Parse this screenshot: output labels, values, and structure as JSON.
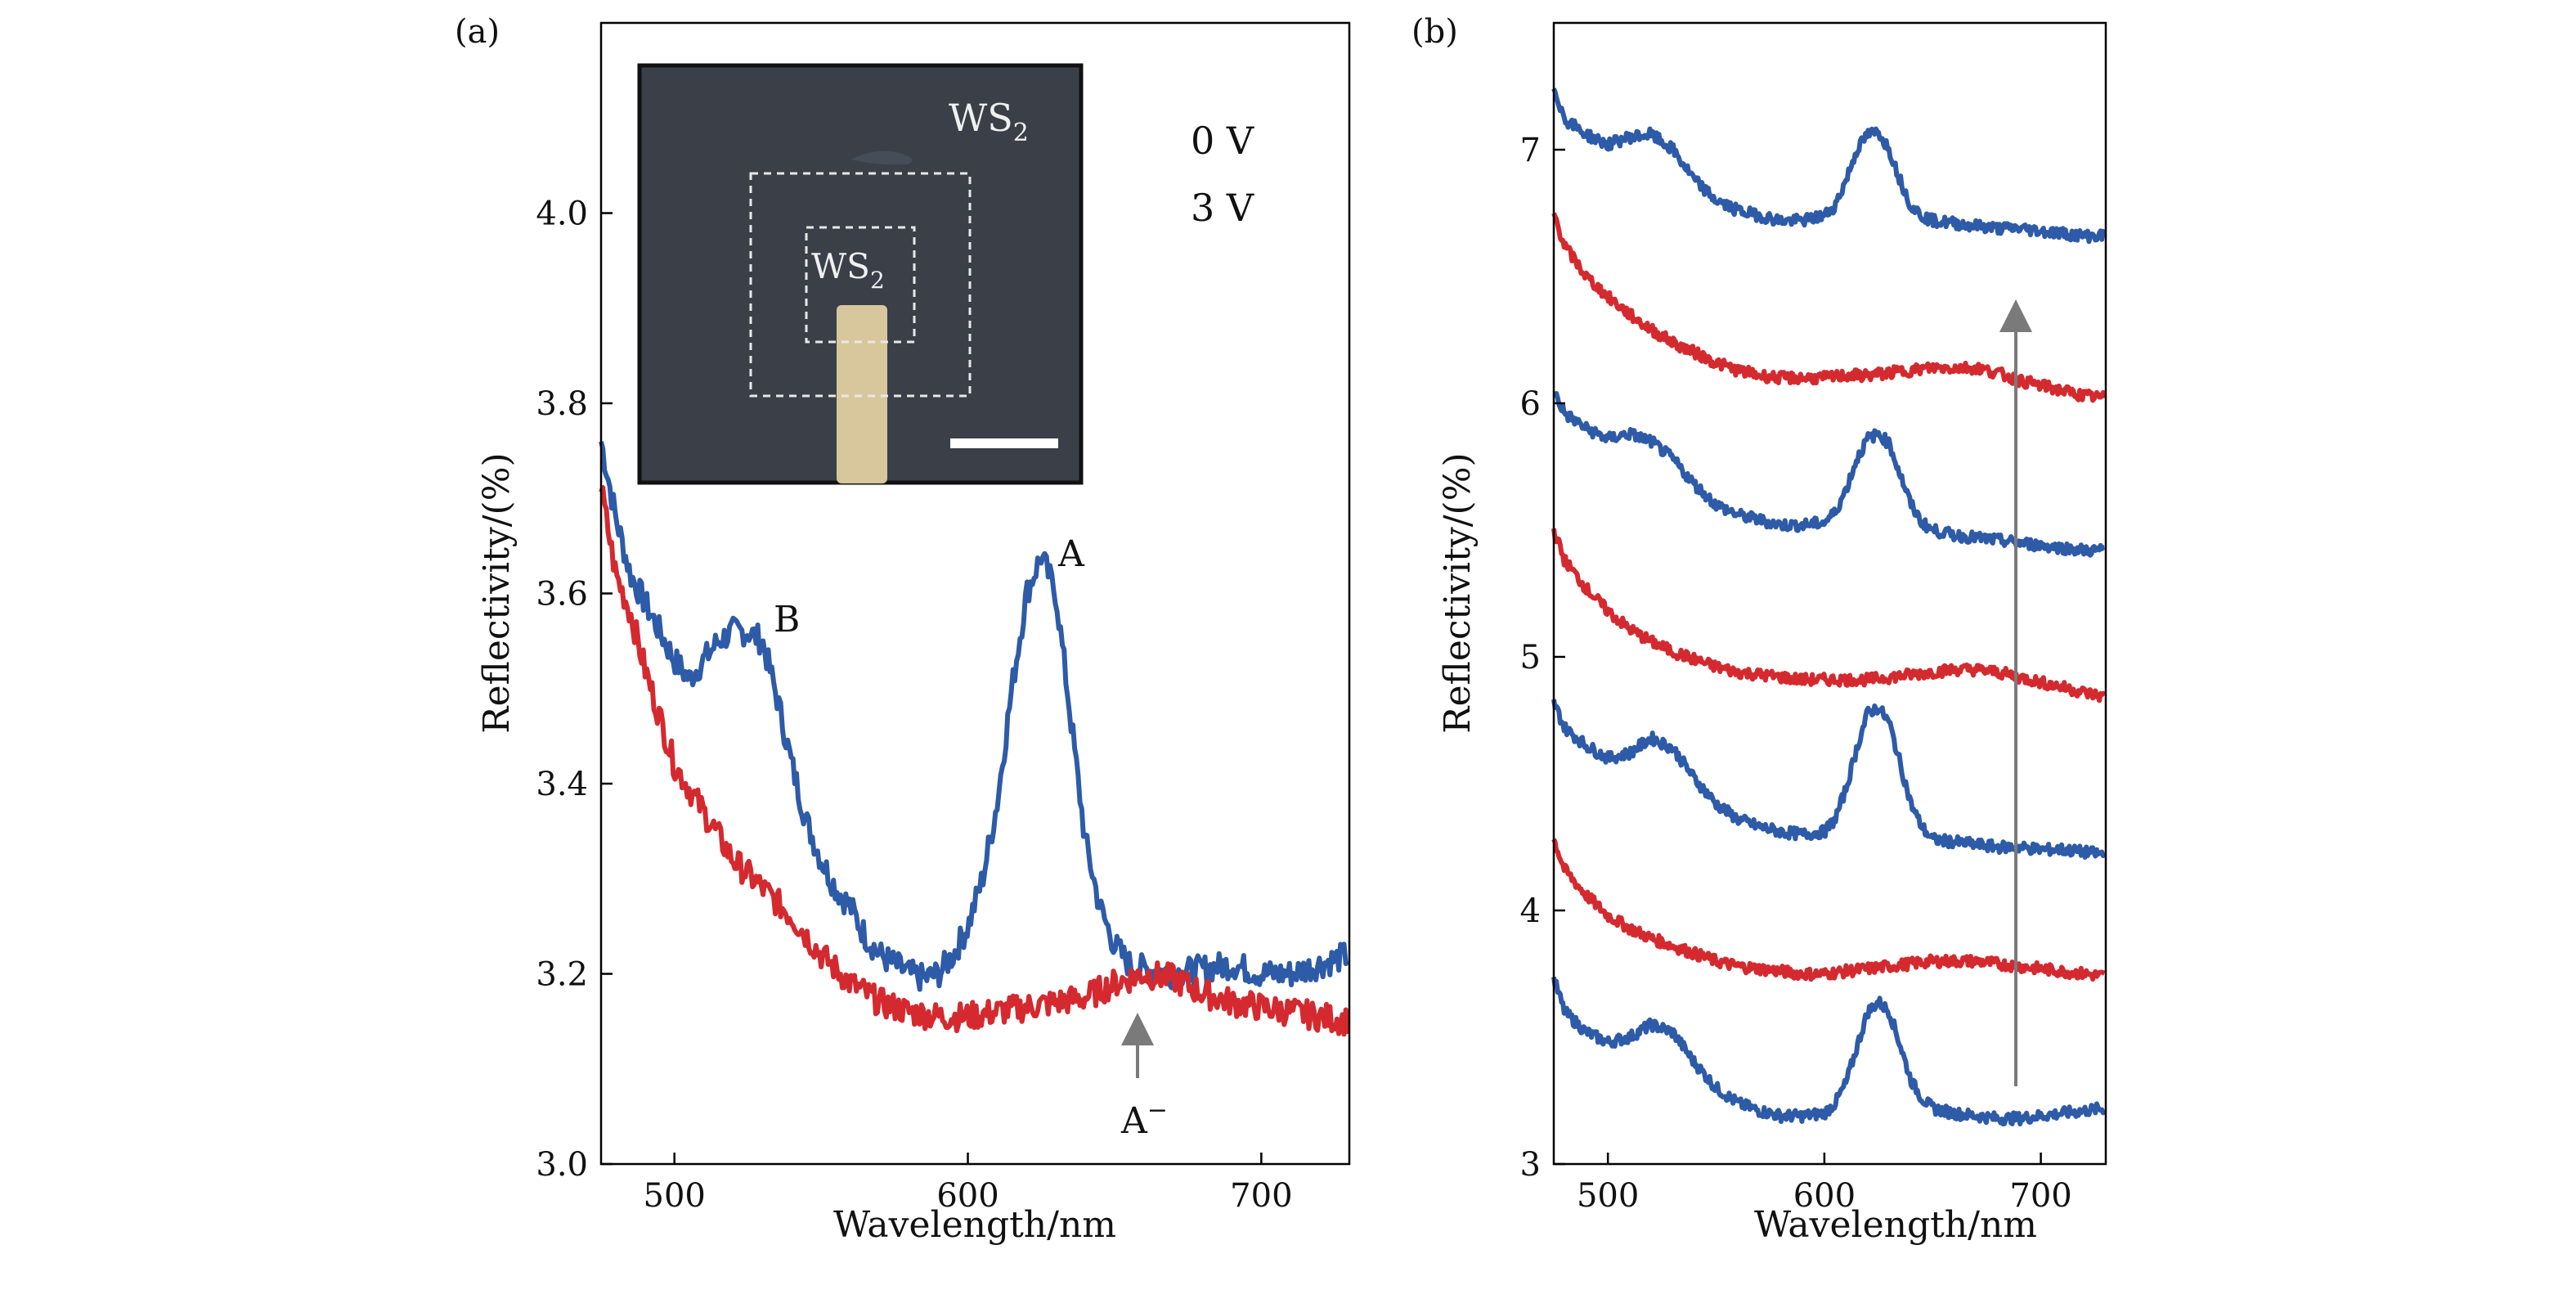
{
  "colors": {
    "blue": "#2e5ba8",
    "red": "#d42a2f",
    "axis": "#000000",
    "arrow": "#7a7a7a",
    "inset_bg": "#3a3f48",
    "electrode": "#d8c79c",
    "dashed": "#e8e8e8"
  },
  "chart_data": [
    {
      "type": "line",
      "panel_label": "(a)",
      "xlabel": "Wavelength/nm",
      "ylabel": "Reflectivity/(%)",
      "xlim": [
        475,
        730
      ],
      "ylim": [
        3.0,
        4.2
      ],
      "xticks": [
        "500",
        "600",
        "700"
      ],
      "yticks": [
        "3.0",
        "3.2",
        "3.4",
        "3.6",
        "3.8",
        "4.0"
      ],
      "legend": [
        {
          "text": "0 V",
          "color": "blue"
        },
        {
          "text": "3 V",
          "color": "red"
        }
      ],
      "legend_position": "top-right",
      "annotations": {
        "A": "A",
        "B": "B",
        "A_minus": "A",
        "A_minus_sup": "−"
      },
      "inset": {
        "outer_label": "WS",
        "outer_sub": "2",
        "inner_label": "WS",
        "inner_sub": "2",
        "has_scale_bar": true
      },
      "series": [
        {
          "name": "0 V",
          "color": "blue",
          "x": [
            475,
            480,
            485,
            490,
            495,
            500,
            505,
            510,
            515,
            520,
            525,
            530,
            535,
            540,
            545,
            550,
            555,
            560,
            565,
            570,
            575,
            580,
            585,
            590,
            595,
            600,
            605,
            610,
            615,
            620,
            625,
            630,
            635,
            640,
            645,
            650,
            655,
            660,
            670,
            680,
            690,
            700,
            710,
            720,
            730
          ],
          "y": [
            3.76,
            3.68,
            3.62,
            3.59,
            3.56,
            3.53,
            3.51,
            3.53,
            3.55,
            3.56,
            3.56,
            3.55,
            3.49,
            3.42,
            3.36,
            3.32,
            3.29,
            3.27,
            3.24,
            3.22,
            3.21,
            3.2,
            3.195,
            3.2,
            3.22,
            3.25,
            3.3,
            3.38,
            3.5,
            3.6,
            3.64,
            3.6,
            3.47,
            3.34,
            3.27,
            3.23,
            3.21,
            3.205,
            3.2,
            3.205,
            3.21,
            3.2,
            3.2,
            3.21,
            3.22
          ]
        },
        {
          "name": "3 V",
          "color": "red",
          "x": [
            475,
            480,
            485,
            490,
            495,
            500,
            510,
            520,
            530,
            540,
            550,
            560,
            570,
            580,
            590,
            600,
            610,
            620,
            630,
            640,
            650,
            660,
            670,
            680,
            690,
            700,
            710,
            720,
            730
          ],
          "y": [
            3.71,
            3.62,
            3.58,
            3.52,
            3.47,
            3.42,
            3.37,
            3.32,
            3.29,
            3.26,
            3.22,
            3.19,
            3.17,
            3.16,
            3.155,
            3.155,
            3.16,
            3.165,
            3.17,
            3.175,
            3.19,
            3.2,
            3.195,
            3.18,
            3.17,
            3.165,
            3.16,
            3.155,
            3.15
          ]
        }
      ]
    },
    {
      "type": "line",
      "panel_label": "(b)",
      "xlabel": "Wavelength/nm",
      "ylabel": "Reflectivity/(%)",
      "xlim": [
        475,
        730
      ],
      "ylim": [
        3.0,
        7.5
      ],
      "xticks": [
        "500",
        "600",
        "700"
      ],
      "yticks": [
        "3",
        "4",
        "5",
        "6",
        "7"
      ],
      "annotations": {
        "arrow_direction": "up"
      },
      "series": [
        {
          "color": "blue",
          "x": [
            475,
            480,
            490,
            500,
            510,
            520,
            530,
            540,
            550,
            560,
            570,
            580,
            590,
            600,
            605,
            610,
            615,
            620,
            625,
            630,
            635,
            640,
            645,
            650,
            660,
            670,
            680,
            690,
            700,
            710,
            720,
            730
          ],
          "y": [
            3.73,
            3.6,
            3.52,
            3.48,
            3.5,
            3.55,
            3.52,
            3.4,
            3.3,
            3.24,
            3.21,
            3.19,
            3.19,
            3.2,
            3.24,
            3.32,
            3.46,
            3.6,
            3.64,
            3.6,
            3.47,
            3.33,
            3.26,
            3.22,
            3.2,
            3.19,
            3.18,
            3.18,
            3.19,
            3.2,
            3.21,
            3.22
          ]
        },
        {
          "color": "red",
          "x": [
            475,
            480,
            490,
            500,
            510,
            520,
            530,
            540,
            550,
            560,
            570,
            580,
            590,
            600,
            610,
            620,
            630,
            640,
            650,
            660,
            670,
            680,
            690,
            700,
            710,
            720,
            730
          ],
          "y": [
            4.28,
            4.16,
            4.06,
            3.98,
            3.93,
            3.89,
            3.86,
            3.83,
            3.8,
            3.78,
            3.77,
            3.76,
            3.75,
            3.75,
            3.76,
            3.77,
            3.78,
            3.79,
            3.8,
            3.8,
            3.8,
            3.79,
            3.78,
            3.77,
            3.76,
            3.75,
            3.74
          ]
        },
        {
          "color": "blue",
          "x": [
            475,
            480,
            490,
            500,
            510,
            520,
            530,
            540,
            550,
            560,
            570,
            580,
            590,
            600,
            605,
            610,
            615,
            620,
            625,
            630,
            635,
            640,
            645,
            650,
            660,
            670,
            680,
            690,
            700,
            710,
            720,
            730
          ],
          "y": [
            4.82,
            4.72,
            4.65,
            4.6,
            4.62,
            4.68,
            4.64,
            4.52,
            4.42,
            4.36,
            4.33,
            4.31,
            4.3,
            4.31,
            4.36,
            4.48,
            4.64,
            4.78,
            4.8,
            4.74,
            4.58,
            4.42,
            4.33,
            4.28,
            4.27,
            4.26,
            4.25,
            4.25,
            4.24,
            4.24,
            4.23,
            4.22
          ]
        },
        {
          "color": "red",
          "x": [
            475,
            480,
            490,
            500,
            510,
            520,
            530,
            540,
            550,
            560,
            570,
            580,
            590,
            600,
            610,
            620,
            630,
            640,
            650,
            660,
            670,
            680,
            690,
            700,
            710,
            720,
            730
          ],
          "y": [
            5.5,
            5.38,
            5.27,
            5.18,
            5.11,
            5.06,
            5.02,
            4.99,
            4.96,
            4.94,
            4.93,
            4.92,
            4.91,
            4.91,
            4.91,
            4.91,
            4.92,
            4.93,
            4.94,
            4.95,
            4.95,
            4.94,
            4.92,
            4.9,
            4.88,
            4.86,
            4.84
          ]
        },
        {
          "color": "blue",
          "x": [
            475,
            480,
            490,
            500,
            510,
            520,
            530,
            540,
            550,
            560,
            570,
            580,
            590,
            600,
            605,
            610,
            615,
            620,
            625,
            630,
            635,
            640,
            645,
            650,
            660,
            670,
            680,
            690,
            700,
            710,
            720,
            730
          ],
          "y": [
            6.05,
            5.96,
            5.9,
            5.86,
            5.88,
            5.85,
            5.78,
            5.68,
            5.6,
            5.56,
            5.54,
            5.52,
            5.52,
            5.53,
            5.57,
            5.66,
            5.78,
            5.86,
            5.88,
            5.84,
            5.72,
            5.6,
            5.53,
            5.5,
            5.48,
            5.47,
            5.46,
            5.45,
            5.44,
            5.43,
            5.42,
            5.42
          ]
        },
        {
          "color": "red",
          "x": [
            475,
            480,
            490,
            500,
            510,
            520,
            530,
            540,
            550,
            560,
            570,
            580,
            590,
            600,
            610,
            620,
            630,
            640,
            650,
            660,
            670,
            680,
            690,
            700,
            710,
            720,
            730
          ],
          "y": [
            6.75,
            6.62,
            6.5,
            6.42,
            6.35,
            6.29,
            6.24,
            6.2,
            6.16,
            6.13,
            6.11,
            6.1,
            6.1,
            6.1,
            6.11,
            6.11,
            6.12,
            6.13,
            6.14,
            6.14,
            6.14,
            6.12,
            6.09,
            6.07,
            6.05,
            6.03,
            6.02
          ]
        },
        {
          "color": "blue",
          "x": [
            475,
            480,
            490,
            500,
            510,
            520,
            530,
            540,
            550,
            560,
            570,
            580,
            590,
            600,
            605,
            610,
            615,
            620,
            625,
            630,
            635,
            640,
            645,
            650,
            660,
            670,
            680,
            690,
            700,
            710,
            720,
            730
          ],
          "y": [
            7.25,
            7.12,
            7.06,
            7.02,
            7.05,
            7.06,
            7.0,
            6.88,
            6.8,
            6.76,
            6.74,
            6.72,
            6.72,
            6.74,
            6.78,
            6.88,
            7.0,
            7.06,
            7.07,
            7.0,
            6.88,
            6.78,
            6.74,
            6.72,
            6.71,
            6.7,
            6.69,
            6.69,
            6.68,
            6.67,
            6.66,
            6.66
          ]
        }
      ]
    }
  ]
}
